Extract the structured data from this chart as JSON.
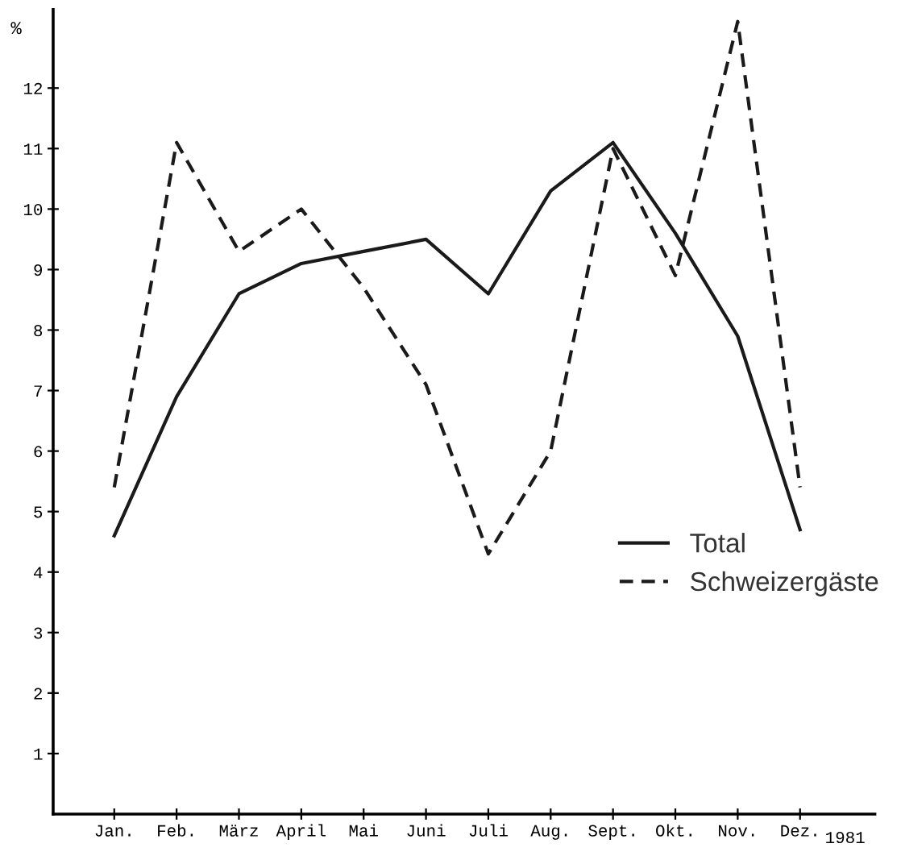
{
  "chart_data": {
    "type": "line",
    "ylabel": "%",
    "categories": [
      "Jan.",
      "Feb.",
      "März",
      "April",
      "Mai",
      "Juni",
      "Juli",
      "Aug.",
      "Sept.",
      "Okt.",
      "Nov.",
      "Dez."
    ],
    "series": [
      {
        "name": "Total",
        "color": "#1a1a1a",
        "line_style": "solid",
        "values": [
          4.6,
          6.9,
          8.6,
          9.1,
          9.3,
          9.5,
          8.6,
          10.3,
          11.1,
          9.6,
          7.9,
          4.7
        ]
      },
      {
        "name": "Schweizergäste",
        "color": "#1a1a1a",
        "line_style": "dashed",
        "values": [
          5.4,
          11.1,
          9.3,
          10.0,
          8.7,
          7.1,
          4.3,
          6.0,
          11.0,
          8.9,
          13.1,
          5.4
        ]
      }
    ],
    "ylim": [
      0,
      13.3
    ],
    "yticks": [
      1,
      2,
      3,
      4,
      5,
      6,
      7,
      8,
      9,
      10,
      11,
      12
    ],
    "annotations": [
      "1981"
    ],
    "grid": false,
    "legend": "right",
    "marker": "none"
  }
}
